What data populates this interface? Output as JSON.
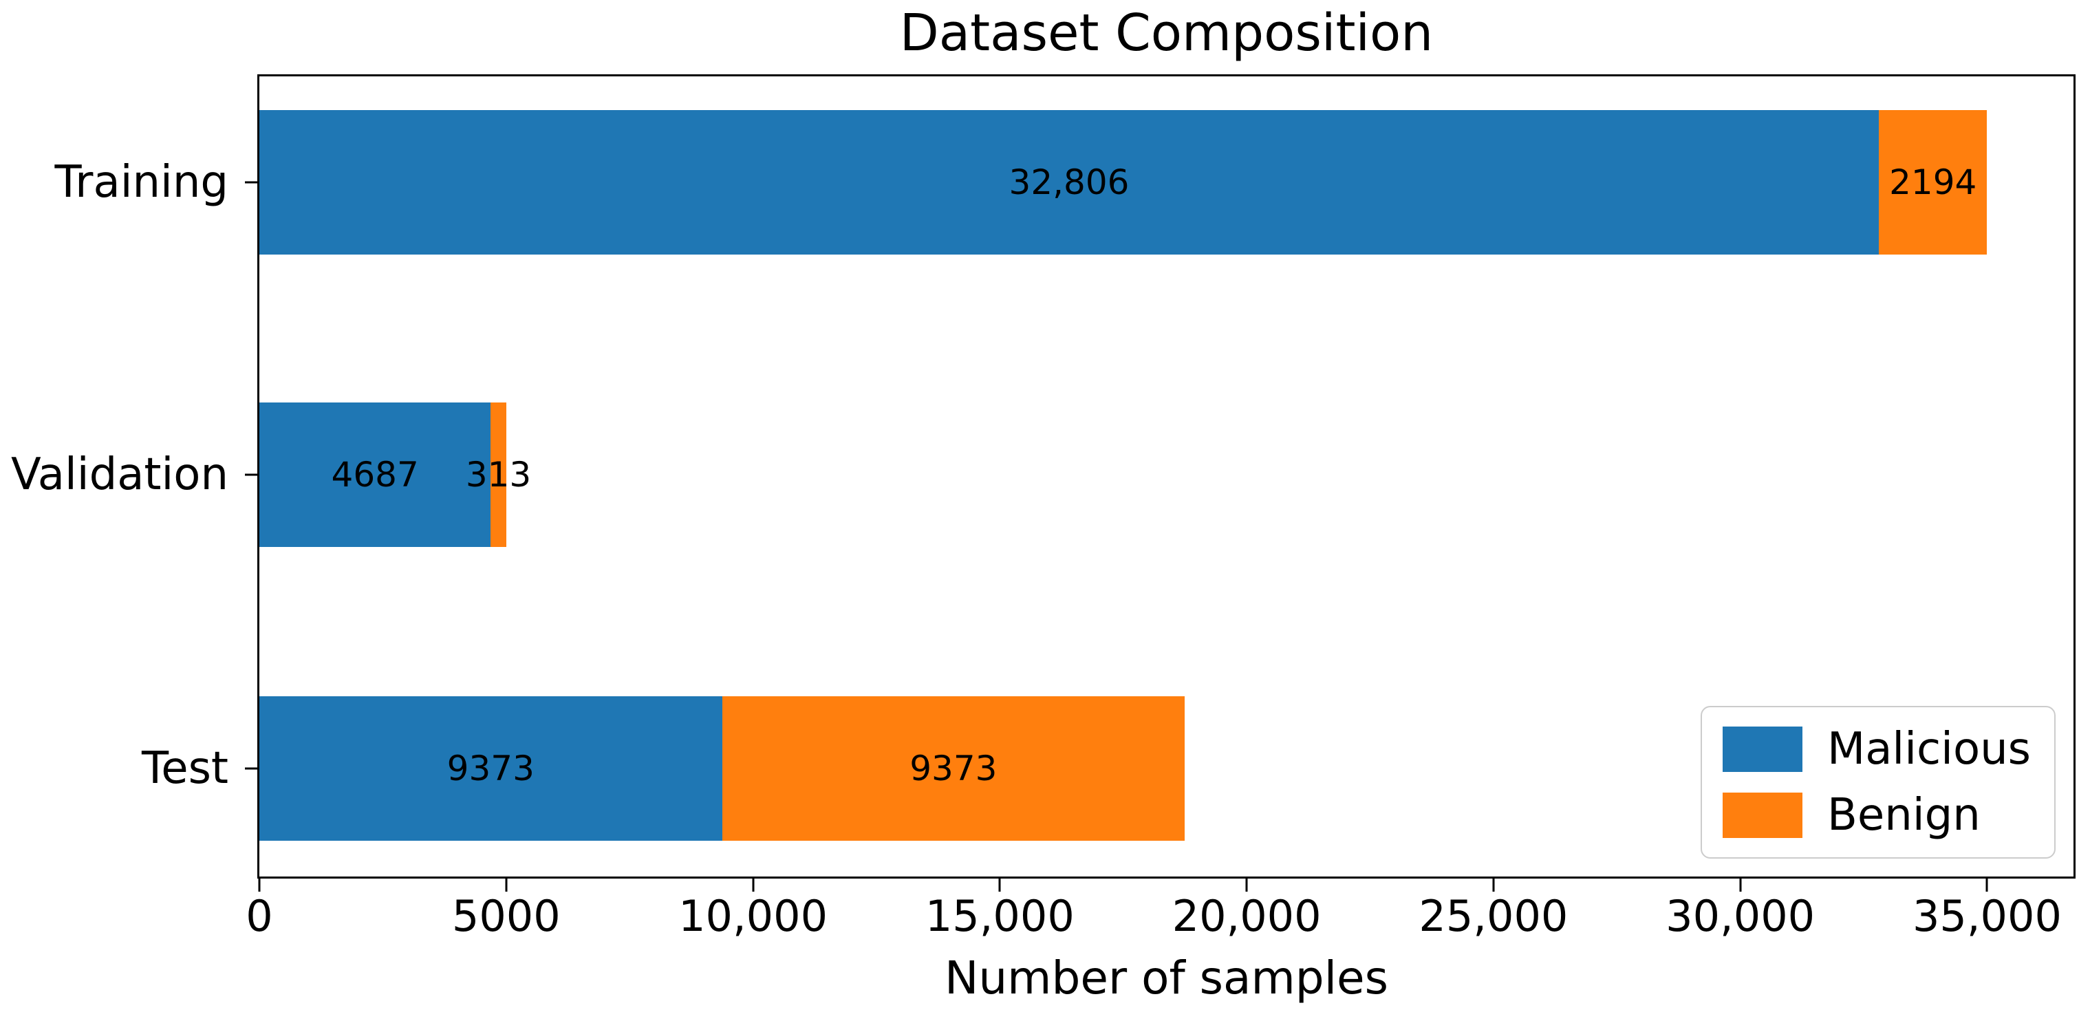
{
  "chart_data": {
    "type": "bar",
    "orientation": "horizontal",
    "stacked": true,
    "title": "Dataset Composition",
    "xlabel": "Number of samples",
    "ylabel": "",
    "categories": [
      "Training",
      "Validation",
      "Test"
    ],
    "series": [
      {
        "name": "Malicious",
        "color": "#1f77b4",
        "values": [
          32806,
          4687,
          9373
        ]
      },
      {
        "name": "Benign",
        "color": "#ff7f0e",
        "values": [
          2194,
          313,
          9373
        ]
      }
    ],
    "bar_labels": [
      [
        "32,806",
        "4687",
        "9373"
      ],
      [
        "2194",
        "313",
        "9373"
      ]
    ],
    "xlim": [
      0,
      36750
    ],
    "xticks": [
      {
        "value": 0,
        "label": "0"
      },
      {
        "value": 5000,
        "label": "5000"
      },
      {
        "value": 10000,
        "label": "10,000"
      },
      {
        "value": 15000,
        "label": "15,000"
      },
      {
        "value": 20000,
        "label": "20,000"
      },
      {
        "value": 25000,
        "label": "25,000"
      },
      {
        "value": 30000,
        "label": "30,000"
      },
      {
        "value": 35000,
        "label": "35,000"
      }
    ],
    "grid": false,
    "legend_position": "lower right",
    "legend_items": [
      {
        "label": "Malicious",
        "color": "#1f77b4"
      },
      {
        "label": "Benign",
        "color": "#ff7f0e"
      }
    ]
  }
}
